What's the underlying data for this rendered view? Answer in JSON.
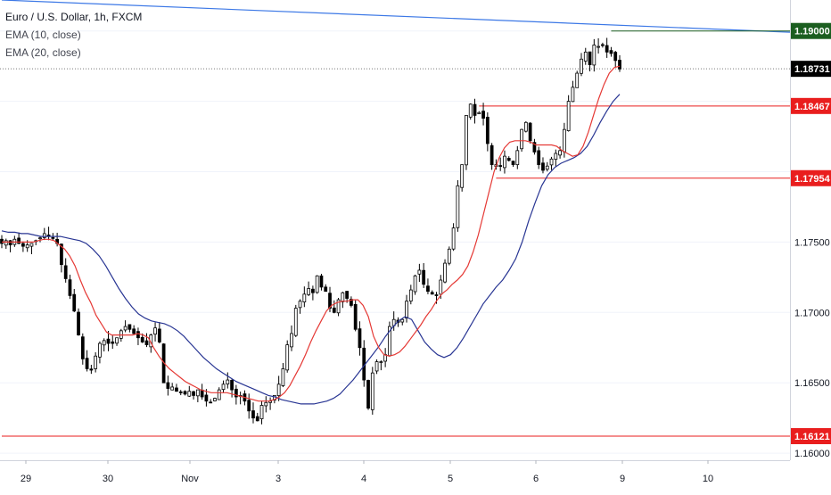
{
  "legend": {
    "title": "Euro / U.S. Dollar, 1h, FXCM",
    "ema1": "EMA (10, close)",
    "ema2": "EMA (20, close)"
  },
  "colors": {
    "up_candle": "#ffffff",
    "down_candle": "#000000",
    "wick": "#000000",
    "ema10": "#e53935",
    "ema20": "#283593",
    "trendline": "#3c78e6",
    "level_red": "#e91e1e",
    "level_green": "#1b5e20",
    "last_price_tag": "#000000",
    "grid": "#f0f3fa"
  },
  "chart_data": {
    "type": "candlestick",
    "title": "Euro / U.S. Dollar, 1h, FXCM",
    "ylim": [
      1.1595,
      1.1922
    ],
    "x_ticks": [
      "29",
      "30",
      "Nov",
      "3",
      "4",
      "5",
      "6",
      "9",
      "10"
    ],
    "y_ticks": [
      "1.16000",
      "1.16500",
      "1.17000",
      "1.17500"
    ],
    "price_labels": [
      {
        "label": "1.19000",
        "value": 1.19,
        "color": "green"
      },
      {
        "label": "1.18731",
        "value": 1.18731,
        "color": "black"
      },
      {
        "label": "1.18467",
        "value": 1.18467,
        "color": "red"
      },
      {
        "label": "1.17954",
        "value": 1.17954,
        "color": "red"
      },
      {
        "label": "1.16121",
        "value": 1.16121,
        "color": "red"
      }
    ],
    "horizontal_levels": [
      {
        "value": 1.19,
        "from": 143,
        "to": 180,
        "color": "green"
      },
      {
        "value": 1.18467,
        "from": 112,
        "to": 180,
        "color": "red"
      },
      {
        "value": 1.17954,
        "from": 116,
        "to": 180,
        "color": "red"
      },
      {
        "value": 1.16121,
        "from": 0,
        "to": 180,
        "color": "red"
      }
    ],
    "last_price": 1.18731,
    "trendline": {
      "x1": 0,
      "y1": 1.1922,
      "x2": 180,
      "y2": 1.1908
    },
    "candle_closes": [
      1.1749,
      1.1751,
      1.1748,
      1.1752,
      1.1749,
      1.1747,
      1.1748,
      1.1749,
      1.1751,
      1.1753,
      1.1756,
      1.1754,
      1.1753,
      1.1749,
      1.1734,
      1.1724,
      1.1712,
      1.1701,
      1.1684,
      1.1667,
      1.166,
      1.1659,
      1.1669,
      1.1678,
      1.168,
      1.1678,
      1.1678,
      1.1682,
      1.1687,
      1.169,
      1.1688,
      1.1685,
      1.1682,
      1.1679,
      1.1677,
      1.1684,
      1.1689,
      1.1679,
      1.165,
      1.1646,
      1.1647,
      1.1644,
      1.1643,
      1.1642,
      1.1644,
      1.1641,
      1.1645,
      1.164,
      1.1637,
      1.1636,
      1.1639,
      1.1645,
      1.1649,
      1.1652,
      1.1645,
      1.164,
      1.1641,
      1.1637,
      1.163,
      1.1625,
      1.1623,
      1.1634,
      1.1636,
      1.1637,
      1.1641,
      1.1649,
      1.166,
      1.1677,
      1.1685,
      1.1703,
      1.1708,
      1.1713,
      1.1717,
      1.1714,
      1.1726,
      1.1718,
      1.1715,
      1.1703,
      1.17,
      1.1709,
      1.1714,
      1.171,
      1.1705,
      1.1688,
      1.1675,
      1.1652,
      1.1632,
      1.1657,
      1.1665,
      1.1665,
      1.167,
      1.169,
      1.1695,
      1.1693,
      1.1695,
      1.1708,
      1.1716,
      1.1726,
      1.173,
      1.172,
      1.1715,
      1.1713,
      1.1712,
      1.1723,
      1.1735,
      1.1745,
      1.176,
      1.179,
      1.1805,
      1.184,
      1.1848,
      1.184,
      1.1842,
      1.1838,
      1.182,
      1.1805,
      1.1805,
      1.1804,
      1.1811,
      1.1808,
      1.1805,
      1.1815,
      1.183,
      1.1835,
      1.1822,
      1.1814,
      1.1805,
      1.1801,
      1.1804,
      1.1809,
      1.1813,
      1.1815,
      1.183,
      1.185,
      1.186,
      1.187,
      1.188,
      1.1885,
      1.1876,
      1.189,
      1.1889,
      1.189,
      1.1885,
      1.1884,
      1.1879,
      1.1873
    ],
    "ema_10": [
      1.175,
      1.175,
      1.175,
      1.175,
      1.175,
      1.175,
      1.175,
      1.1751,
      1.1752,
      1.1752,
      1.1751,
      1.1748,
      1.1745,
      1.174,
      1.1733,
      1.1723,
      1.1714,
      1.1707,
      1.1698,
      1.1692,
      1.1686,
      1.1684,
      1.1684,
      1.1684,
      1.1684,
      1.1684,
      1.1685,
      1.1684,
      1.1682,
      1.1675,
      1.1669,
      1.1664,
      1.166,
      1.1657,
      1.1654,
      1.1651,
      1.1649,
      1.1647,
      1.1645,
      1.1644,
      1.1643,
      1.1643,
      1.1643,
      1.1643,
      1.1642,
      1.1641,
      1.164,
      1.1639,
      1.1638,
      1.1637,
      1.1637,
      1.1637,
      1.1638,
      1.164,
      1.1643,
      1.1648,
      1.1655,
      1.1662,
      1.167,
      1.1679,
      1.1687,
      1.1694,
      1.1701,
      1.1705,
      1.1707,
      1.1708,
      1.1708,
      1.1709,
      1.1709,
      1.1705,
      1.1697,
      1.1683,
      1.1675,
      1.167,
      1.1669,
      1.167,
      1.1672,
      1.1676,
      1.1681,
      1.1686,
      1.1691,
      1.1697,
      1.1702,
      1.1708,
      1.1713,
      1.1716,
      1.172,
      1.1723,
      1.1727,
      1.1733,
      1.1743,
      1.1755,
      1.177,
      1.1785,
      1.18,
      1.181,
      1.1817,
      1.1821,
      1.1822,
      1.1822,
      1.1822,
      1.1821,
      1.1819,
      1.1819,
      1.1819,
      1.1819,
      1.1818,
      1.1815,
      1.1813,
      1.1811,
      1.1812,
      1.1818,
      1.1828,
      1.184,
      1.1852,
      1.1862,
      1.187,
      1.1874,
      1.1875
    ],
    "ema_10_start_index": 0,
    "ema_20_start_index": 0,
    "ema_20": [
      1.1758,
      1.1757,
      1.1757,
      1.1756,
      1.1756,
      1.1755,
      1.1754,
      1.1754,
      1.1754,
      1.1754,
      1.1753,
      1.1752,
      1.1751,
      1.1749,
      1.1745,
      1.174,
      1.1733,
      1.1725,
      1.1717,
      1.171,
      1.1704,
      1.1699,
      1.1696,
      1.1694,
      1.1693,
      1.1692,
      1.169,
      1.1687,
      1.1683,
      1.1678,
      1.1673,
      1.1668,
      1.1664,
      1.166,
      1.1657,
      1.1654,
      1.1651,
      1.1649,
      1.1647,
      1.1645,
      1.1643,
      1.1641,
      1.164,
      1.1638,
      1.1637,
      1.1636,
      1.1635,
      1.1635,
      1.1635,
      1.1636,
      1.1637,
      1.1639,
      1.1642,
      1.1647,
      1.1652,
      1.1658,
      1.1664,
      1.167,
      1.1676,
      1.1683,
      1.1689,
      1.1694,
      1.1697,
      1.1695,
      1.1687,
      1.1679,
      1.1674,
      1.167,
      1.1668,
      1.167,
      1.1675,
      1.1682,
      1.169,
      1.1698,
      1.1706,
      1.1712,
      1.1718,
      1.1723,
      1.173,
      1.1738,
      1.175,
      1.1765,
      1.1778,
      1.179,
      1.1798,
      1.1803,
      1.1806,
      1.1808,
      1.181,
      1.1813,
      1.1818,
      1.1826,
      1.1835,
      1.1843,
      1.185,
      1.1855
    ]
  }
}
